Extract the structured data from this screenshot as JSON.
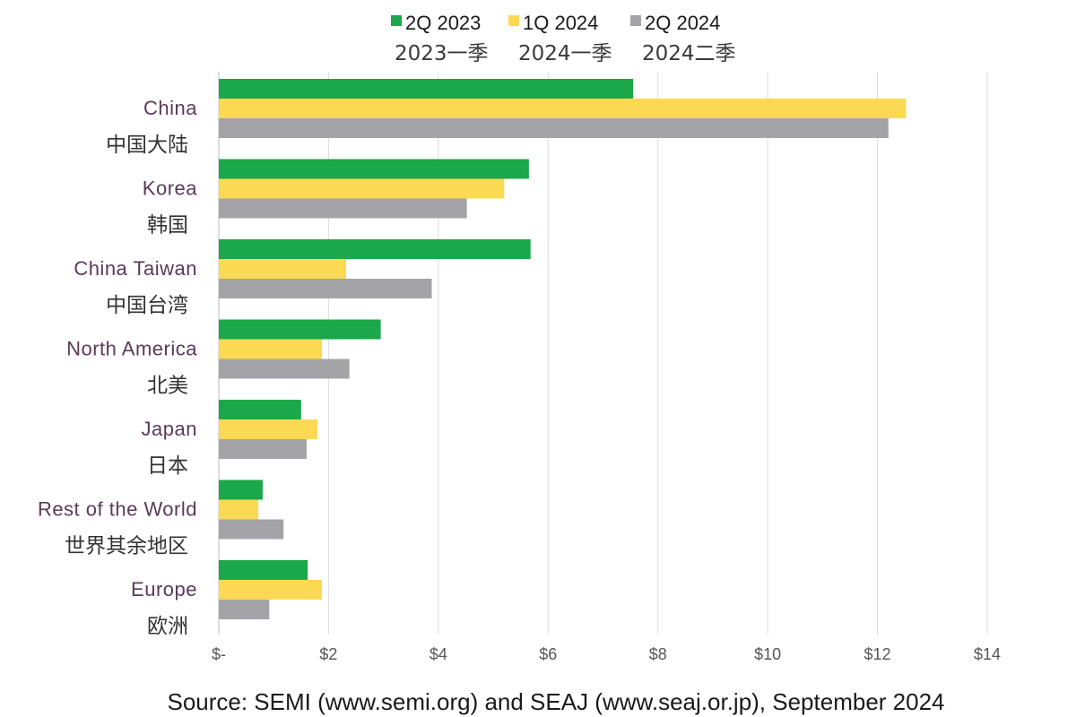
{
  "chart_data": {
    "type": "bar",
    "orientation": "horizontal",
    "categories": [
      {
        "label": "China",
        "sublabel": "中国大陆"
      },
      {
        "label": "Korea",
        "sublabel": "韩国"
      },
      {
        "label": "China Taiwan",
        "sublabel": "中国台湾"
      },
      {
        "label": "North America",
        "sublabel": "北美"
      },
      {
        "label": "Japan",
        "sublabel": "日本"
      },
      {
        "label": "Rest of the World",
        "sublabel": "世界其余地区"
      },
      {
        "label": "Europe",
        "sublabel": "欧洲"
      }
    ],
    "series": [
      {
        "name": "2Q 2023",
        "sublabel": "2023一季",
        "color": "#1aa84a",
        "values": [
          7.55,
          5.65,
          5.68,
          2.95,
          1.5,
          0.8,
          1.62
        ]
      },
      {
        "name": "1Q 2024",
        "sublabel": "2024一季",
        "color": "#fbd953",
        "values": [
          12.52,
          5.2,
          2.32,
          1.88,
          1.8,
          0.72,
          1.88
        ]
      },
      {
        "name": "2Q 2024",
        "sublabel": "2024二季",
        "color": "#a4a4a8",
        "values": [
          12.2,
          4.52,
          3.88,
          2.38,
          1.6,
          1.18,
          0.92
        ]
      }
    ],
    "x_ticks": [
      "$-",
      "$2",
      "$4",
      "$6",
      "$8",
      "$10",
      "$12",
      "$14"
    ],
    "xlim": [
      0,
      14
    ],
    "grid": true,
    "legend_position": "top",
    "source": "Source: SEMI (www.semi.org) and SEAJ (www.seaj.or.jp), September 2024"
  }
}
